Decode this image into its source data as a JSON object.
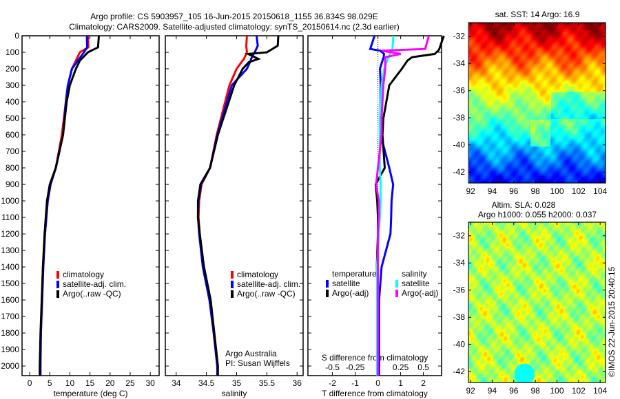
{
  "title": {
    "line1": "Argo profile: CS 5903957_105 16-Jun-2015 20150618_1155 36.834S 98.029E",
    "line2": "Climatology: CARS2009. Satellite-adjusted climatology: synTS_20150614.nc (2.3d earlier)"
  },
  "colors": {
    "climatology": "#ff0000",
    "satellite": "#0000ff",
    "argo": "#000000",
    "s_satellite": "#00ffff",
    "s_argo": "#ff00ff"
  },
  "credit": "Argo Australia",
  "pi": "PI: Susan Wijffels",
  "timestamp": "©IMOS 22-Jun-2015 20:40:15",
  "chart_data": [
    {
      "type": "line",
      "name": "temperature",
      "xlabel": "temperature (deg C)",
      "ylabel": "",
      "xlim": [
        -1.9,
        32.2
      ],
      "ylim": [
        2058,
        0
      ],
      "xticks": [
        0,
        5,
        10,
        15,
        20,
        25,
        30
      ],
      "yticks": [
        0,
        100,
        200,
        300,
        400,
        500,
        600,
        700,
        800,
        900,
        1000,
        1100,
        1200,
        1300,
        1400,
        1500,
        1600,
        1700,
        1800,
        1900,
        2000
      ],
      "legend": [
        "climatology",
        "satellite-adj. clim.",
        "Argo(..raw -QC)"
      ],
      "depth": [
        0,
        70,
        100,
        150,
        200,
        300,
        400,
        600,
        800,
        900,
        1000,
        1200,
        1400,
        1600,
        1800,
        2000,
        2058
      ],
      "series": [
        {
          "name": "climatology",
          "color": "#ff0000",
          "values": [
            14.5,
            14.6,
            12.5,
            11.5,
            10.5,
            9.5,
            9.0,
            8.0,
            6.5,
            5.2,
            4.5,
            3.8,
            3.3,
            3.0,
            2.8,
            2.6,
            2.6
          ]
        },
        {
          "name": "satellite-adj. clim.",
          "color": "#0000ff",
          "values": [
            14.2,
            14.3,
            13.5,
            12.0,
            10.5,
            9.5,
            9.0,
            8.3,
            6.5,
            5.2,
            4.5,
            3.8,
            3.4,
            3.1,
            2.8,
            2.7,
            2.7
          ]
        },
        {
          "name": "Argo(..raw -QC)",
          "color": "#000000",
          "values": [
            17.2,
            17.0,
            14.5,
            12.5,
            11.5,
            10.0,
            9.2,
            8.3,
            6.5,
            5.0,
            4.3,
            3.7,
            3.3,
            3.0,
            2.7,
            2.5,
            2.5
          ]
        }
      ]
    },
    {
      "type": "line",
      "name": "salinity",
      "xlabel": "salinity",
      "xlim": [
        33.82,
        36.1
      ],
      "ylim": [
        2058,
        0
      ],
      "xticks": [
        34,
        34.5,
        35,
        35.5,
        36
      ],
      "legend": [
        "climatology",
        "satellite-adj. clim.",
        "Argo(..raw -QC)"
      ],
      "depth": [
        0,
        60,
        100,
        110,
        140,
        160,
        200,
        300,
        600,
        800,
        900,
        1000,
        1100,
        1200,
        1400,
        1600,
        1800,
        2000,
        2058
      ],
      "series": [
        {
          "name": "climatology",
          "color": "#ff0000",
          "values": [
            35.17,
            35.16,
            35.17,
            35.16,
            35.12,
            35.08,
            35.0,
            34.88,
            34.67,
            34.56,
            34.42,
            34.38,
            34.37,
            34.39,
            34.45,
            34.56,
            34.62,
            34.68,
            34.69
          ]
        },
        {
          "name": "satellite-adj. clim.",
          "color": "#0000ff",
          "values": [
            35.33,
            35.35,
            35.3,
            35.28,
            35.24,
            35.22,
            35.17,
            34.92,
            34.68,
            34.56,
            34.41,
            34.37,
            34.36,
            34.38,
            34.44,
            34.55,
            34.62,
            34.68,
            34.68
          ]
        },
        {
          "name": "Argo(..raw -QC)",
          "color": "#000000",
          "values": [
            35.69,
            35.68,
            35.5,
            35.19,
            35.36,
            35.2,
            35.1,
            34.96,
            34.69,
            34.56,
            34.4,
            34.36,
            34.36,
            34.39,
            34.46,
            34.57,
            34.63,
            34.69,
            34.69
          ]
        }
      ]
    },
    {
      "type": "line",
      "name": "difference",
      "xlabel": "T difference from climatology",
      "x2label": "S difference from climatology",
      "xlim": [
        -3.08,
        2.8
      ],
      "x2lim": [
        -0.77,
        0.7
      ],
      "ylim": [
        2058,
        0
      ],
      "xticks": [
        -2,
        -1,
        0,
        1,
        2
      ],
      "x2ticks": [
        -0.5,
        -0.25,
        0,
        0.25,
        0.5
      ],
      "legend_titles": [
        "temperature",
        "salinity"
      ],
      "legend": [
        "satellite",
        "Argo(-adj)",
        "satellite",
        "Argo(-adj)"
      ],
      "depth": [
        0,
        80,
        90,
        110,
        130,
        150,
        200,
        300,
        500,
        600,
        800,
        900,
        1000,
        1100,
        1200,
        1400,
        1600,
        2000,
        2058
      ],
      "series": [
        {
          "name": "T satellite",
          "axis": "T",
          "color": "#0000ff",
          "values": [
            -0.15,
            -0.34,
            0.1,
            0.27,
            0.25,
            0.2,
            0.09,
            0.12,
            0.1,
            0.12,
            0.5,
            0.67,
            0.6,
            0.58,
            0.55,
            0.16,
            0.05,
            0.05,
            0.05
          ]
        },
        {
          "name": "T Argo(-adj)",
          "axis": "T",
          "color": "#000000",
          "values": [
            2.9,
            2.7,
            2.65,
            2.5,
            1.5,
            1.3,
            1.05,
            0.5,
            0.24,
            0.2,
            0.3,
            -0.1,
            -0.03,
            0.0,
            0.0,
            -0.05,
            0.0,
            0.0,
            0.0
          ]
        },
        {
          "name": "S satellite",
          "axis": "S",
          "color": "#00ffff",
          "values": [
            0.17,
            0.16,
            0.16,
            0.13,
            0.12,
            0.1,
            0.07,
            0.04,
            0.02,
            0.02,
            0.02,
            0.03,
            0.03,
            0.02,
            0.01,
            -0.01,
            -0.01,
            -0.01,
            -0.01
          ]
        },
        {
          "name": "S Argo(-adj)",
          "axis": "S",
          "color": "#ff00ff",
          "values": [
            0.56,
            0.52,
            0.04,
            0.25,
            0.08,
            0.08,
            0.08,
            0.06,
            0.04,
            0.04,
            0.0,
            -0.02,
            0.01,
            0.01,
            0.0,
            0.0,
            0.0,
            0.0,
            0.0
          ]
        }
      ]
    },
    {
      "type": "heatmap",
      "name": "sst-map",
      "title": "sat. SST: 14 Argo: 16.9",
      "xlim": [
        91.8,
        104.5
      ],
      "ylim": [
        -42.8,
        -31.0
      ],
      "xticks": [
        92,
        94,
        96,
        98,
        100,
        102,
        104
      ],
      "yticks": [
        -32,
        -34,
        -36,
        -38,
        -40,
        -42
      ]
    },
    {
      "type": "heatmap",
      "name": "sla-map",
      "title1": "Altim. SLA: 0.028",
      "title2": "Argo h1000: 0.055 h2000: 0.037",
      "xlim": [
        91.8,
        104.5
      ],
      "ylim": [
        -42.8,
        -31.0
      ],
      "xticks": [
        92,
        94,
        96,
        98,
        100,
        102,
        104
      ],
      "yticks": [
        -32,
        -34,
        -36,
        -38,
        -40,
        -42
      ]
    }
  ]
}
